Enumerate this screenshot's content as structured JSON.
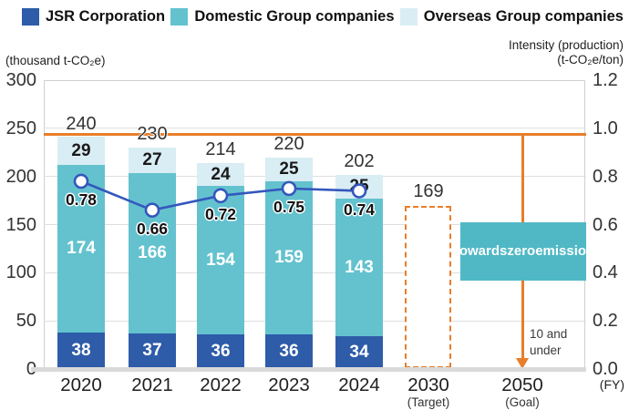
{
  "legend": {
    "items": [
      {
        "label": "JSR Corporation",
        "color": "#2E5CA8"
      },
      {
        "label": "Domestic Group companies",
        "color": "#63C2CE"
      },
      {
        "label": "Overseas Group companies",
        "color": "#D9EDF4"
      }
    ]
  },
  "axes": {
    "left_unit": "(thousand t-CO₂e)",
    "right_title": "Intensity (production)",
    "right_unit": "(t-CO₂e/ton)",
    "x_unit": "(FY)"
  },
  "chart_data": {
    "type": "bar+line",
    "title": "",
    "categories": [
      "2020",
      "2021",
      "2022",
      "2023",
      "2024",
      "2030",
      "2050"
    ],
    "category_sublabels": [
      "",
      "",
      "",
      "",
      "",
      "(Target)",
      "(Goal)"
    ],
    "series": [
      {
        "name": "JSR Corporation",
        "color": "#2E5CA8",
        "label_color": "#ffffff",
        "values": [
          38,
          37,
          36,
          36,
          34
        ]
      },
      {
        "name": "Domestic Group companies",
        "color": "#63C2CE",
        "label_color": "#ffffff",
        "values": [
          174,
          166,
          154,
          159,
          143
        ]
      },
      {
        "name": "Overseas Group companies",
        "color": "#D9EDF4",
        "label_color": "#1a1a1a",
        "values": [
          29,
          27,
          24,
          25,
          25
        ]
      }
    ],
    "totals": [
      240,
      230,
      214,
      220,
      202
    ],
    "line": {
      "name": "Intensity (production)",
      "color": "#3457BD",
      "axis": "right",
      "values": [
        0.78,
        0.66,
        0.72,
        0.75,
        0.74
      ]
    },
    "target_bar": {
      "category": "2030",
      "value": 169,
      "color": "#E87E2B",
      "style": "dashed"
    },
    "goal": {
      "category": "2050",
      "arrow_label": "10 and under",
      "box_lines": [
        "Towards",
        "zero",
        "emission"
      ],
      "box_color": "#50B8C5",
      "arrow_color": "#E87E2B"
    },
    "reference_line": {
      "value": 244,
      "color": "#E87E2B"
    },
    "ylim_left": [
      0,
      300
    ],
    "ylim_right": [
      0,
      1.2
    ],
    "left_ticks": [
      300,
      250,
      200,
      150,
      100,
      50,
      0
    ],
    "right_ticks": [
      "1.2",
      "1.0",
      "0.8",
      "0.6",
      "0.4",
      "0.2",
      "0.0"
    ],
    "grid": true,
    "legend_position": "top"
  }
}
